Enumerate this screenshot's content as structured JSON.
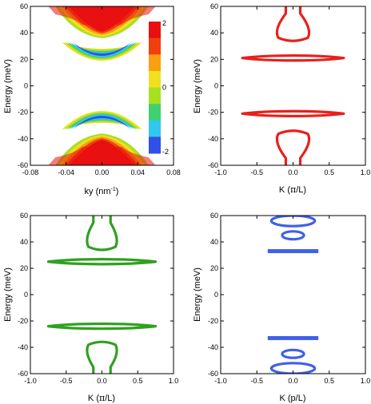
{
  "chart_data": [
    {
      "type": "heatmap",
      "panel": "top-left",
      "xlabel": "ky (nm",
      "xlabel_sup": "-1",
      "xlabel_close": ")",
      "ylabel": "Energy (meV)",
      "xlim": [
        -0.08,
        0.08
      ],
      "ylim": [
        -60,
        60
      ],
      "xticks": [
        "-0.08",
        "-0.04",
        "0.00",
        "0.04",
        "0.08"
      ],
      "yticks": [
        "-60",
        "-40",
        "-20",
        "0",
        "20",
        "40",
        "60"
      ],
      "colorbar": {
        "ticks": [
          "2",
          "0",
          "-2"
        ],
        "range": [
          -2,
          2
        ]
      },
      "colors": [
        "#3050e8",
        "#30c8f0",
        "#40d070",
        "#a8e020",
        "#f0e020",
        "#f8a010",
        "#f04010",
        "#e81010"
      ],
      "regions": [
        {
          "band": "upper-continuum",
          "ky_half_width_at_edge": 0.052,
          "ky_half_width_at_apex": 0.028,
          "energy_apex": 36,
          "energy_edge": 60
        },
        {
          "band": "upper-crescent",
          "ky_range": [
            -0.045,
            0.045
          ],
          "energy_center": 23,
          "energy_edge": 33
        },
        {
          "band": "lower-crescent",
          "ky_range": [
            -0.045,
            0.045
          ],
          "energy_center": -23,
          "energy_edge": -33
        },
        {
          "band": "lower-continuum",
          "ky_half_width_at_edge": 0.052,
          "ky_half_width_at_apex": 0.028,
          "energy_apex": -36,
          "energy_edge": -60
        }
      ]
    },
    {
      "type": "contour",
      "panel": "top-right",
      "color": "#e8201c",
      "xlabel": "K (",
      "xlabel_sym": "π",
      "xlabel_close": "/L)",
      "ylabel": "Energy (meV)",
      "xlim": [
        -1.0,
        1.0
      ],
      "ylim": [
        -60,
        60
      ],
      "xticks": [
        "-1.0",
        "-0.5",
        "0.0",
        "0.5",
        "1.0"
      ],
      "yticks": [
        "-60",
        "-40",
        "-20",
        "0",
        "20",
        "40",
        "60"
      ],
      "lenses": [
        {
          "k_half_width": 0.7,
          "energy": 21,
          "thickness_meV": 5
        },
        {
          "k_half_width": 0.7,
          "energy": -21,
          "thickness_meV": 5
        }
      ],
      "loops": [
        {
          "energy_range": [
            33,
            60
          ],
          "k_half_width_max": 0.27,
          "k_half_width_min": 0.1
        },
        {
          "energy_range": [
            -60,
            -33
          ],
          "k_half_width_max": 0.27,
          "k_half_width_min": 0.1
        }
      ]
    },
    {
      "type": "contour",
      "panel": "bottom-left",
      "color": "#30a020",
      "xlabel": "K (",
      "xlabel_sym": "π",
      "xlabel_close": "/L)",
      "ylabel": "Energy (meV)",
      "xlim": [
        -1.0,
        1.0
      ],
      "ylim": [
        -60,
        60
      ],
      "xticks": [
        "-1.0",
        "-0.5",
        "0.0",
        "0.5",
        "1.0"
      ],
      "yticks": [
        "-60",
        "-40",
        "-20",
        "0",
        "20",
        "40",
        "60"
      ],
      "lenses": [
        {
          "k_half_width": 0.75,
          "energy": 25,
          "thickness_meV": 5
        },
        {
          "k_half_width": 0.75,
          "energy": -24,
          "thickness_meV": 5
        }
      ],
      "loops": [
        {
          "energy_range": [
            33,
            60
          ],
          "k_half_width_max": 0.25,
          "k_half_width_min": 0.12
        },
        {
          "energy_range": [
            -60,
            -35
          ],
          "k_half_width_max": 0.25,
          "k_half_width_min": 0.12
        }
      ]
    },
    {
      "type": "contour",
      "panel": "bottom-right",
      "color": "#4060e8",
      "xlabel": "K (p/L)",
      "ylabel": "Energy (meV)",
      "xlim": [
        -1.0,
        1.0
      ],
      "ylim": [
        -60,
        60
      ],
      "xticks": [
        "-1.0",
        "-0.5",
        "0.0",
        "0.5",
        "1.0"
      ],
      "yticks": [
        "-60",
        "-40",
        "-20",
        "0",
        "20",
        "40",
        "60"
      ],
      "bars": [
        {
          "k_half_width": 0.35,
          "energy": 33
        },
        {
          "k_half_width": 0.35,
          "energy": -33
        }
      ],
      "loops": [
        {
          "energy_range": [
            52,
            60
          ],
          "k_half_width": 0.3
        },
        {
          "energy_range": [
            42,
            48
          ],
          "k_half_width": 0.15
        },
        {
          "energy_range": [
            -48,
            -42
          ],
          "k_half_width": 0.15
        },
        {
          "energy_range": [
            -60,
            -52
          ],
          "k_half_width": 0.3
        }
      ]
    }
  ]
}
